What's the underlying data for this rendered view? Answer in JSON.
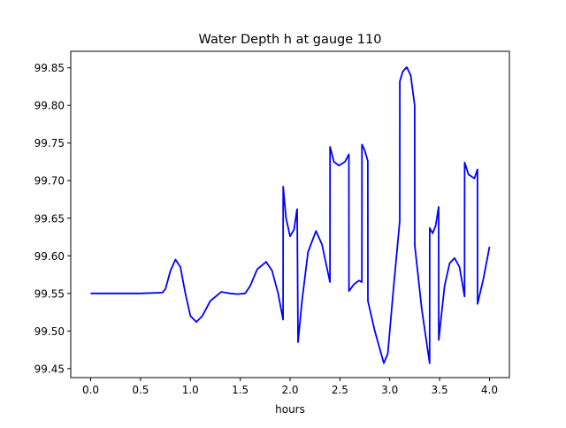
{
  "chart_data": {
    "type": "line",
    "title": "Water Depth h at gauge 110",
    "xlabel": "hours",
    "ylabel": "",
    "xlim": [
      -0.2,
      4.2
    ],
    "ylim": [
      99.438,
      99.872
    ],
    "xticks": [
      0.0,
      0.5,
      1.0,
      1.5,
      2.0,
      2.5,
      3.0,
      3.5,
      4.0
    ],
    "xtick_labels": [
      "0.0",
      "0.5",
      "1.0",
      "1.5",
      "2.0",
      "2.5",
      "3.0",
      "3.5",
      "4.0"
    ],
    "yticks": [
      99.45,
      99.5,
      99.55,
      99.6,
      99.65,
      99.7,
      99.75,
      99.8,
      99.85
    ],
    "ytick_labels": [
      "99.45",
      "99.50",
      "99.55",
      "99.60",
      "99.65",
      "99.70",
      "99.75",
      "99.80",
      "99.85"
    ],
    "grid": false,
    "series": [
      {
        "name": "h",
        "color": "#0000ff",
        "x": [
          0.0,
          0.5,
          0.72,
          0.75,
          0.8,
          0.85,
          0.9,
          0.95,
          1.0,
          1.06,
          1.12,
          1.2,
          1.31,
          1.4,
          1.47,
          1.55,
          1.6,
          1.67,
          1.76,
          1.82,
          1.88,
          1.93,
          1.931,
          1.96,
          2.0,
          2.04,
          2.07,
          2.071,
          2.08,
          2.12,
          2.18,
          2.26,
          2.32,
          2.4,
          2.401,
          2.44,
          2.49,
          2.55,
          2.59,
          2.591,
          2.64,
          2.69,
          2.72,
          2.721,
          2.75,
          2.78,
          2.781,
          2.85,
          2.94,
          2.98,
          3.04,
          3.1,
          3.101,
          3.13,
          3.17,
          3.21,
          3.25,
          3.251,
          3.32,
          3.4,
          3.401,
          3.43,
          3.46,
          3.49,
          3.491,
          3.55,
          3.6,
          3.65,
          3.7,
          3.75,
          3.751,
          3.79,
          3.85,
          3.88,
          3.881,
          3.94,
          4.0
        ],
        "y": [
          99.55,
          99.55,
          99.551,
          99.556,
          99.58,
          99.595,
          99.585,
          99.55,
          99.52,
          99.512,
          99.52,
          99.54,
          99.552,
          99.55,
          99.549,
          99.55,
          99.56,
          99.582,
          99.592,
          99.58,
          99.55,
          99.515,
          99.692,
          99.65,
          99.626,
          99.635,
          99.662,
          99.662,
          99.485,
          99.54,
          99.605,
          99.633,
          99.615,
          99.565,
          99.745,
          99.725,
          99.72,
          99.725,
          99.735,
          99.553,
          99.562,
          99.567,
          99.565,
          99.748,
          99.74,
          99.726,
          99.54,
          99.5,
          99.457,
          99.47,
          99.56,
          99.646,
          99.832,
          99.845,
          99.851,
          99.84,
          99.8,
          99.614,
          99.53,
          99.457,
          99.637,
          99.63,
          99.64,
          99.665,
          99.488,
          99.56,
          99.59,
          99.597,
          99.585,
          99.546,
          99.724,
          99.708,
          99.703,
          99.715,
          99.536,
          99.57,
          99.612
        ]
      }
    ]
  }
}
